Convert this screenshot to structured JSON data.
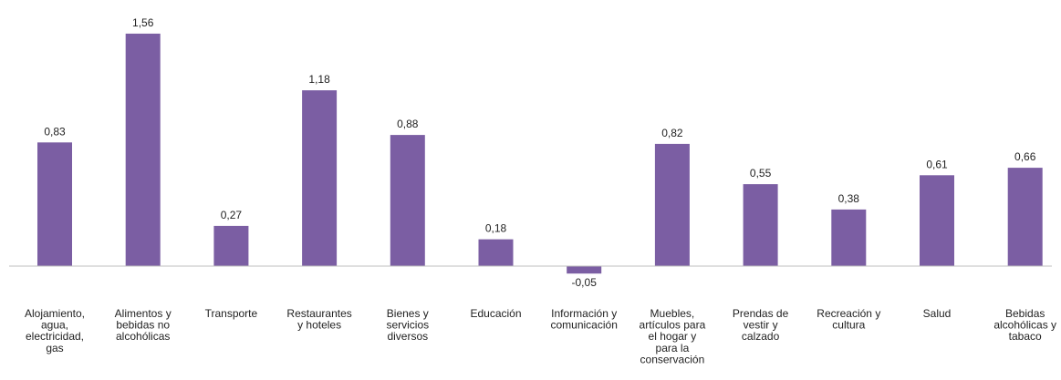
{
  "chart_data": {
    "type": "bar",
    "categories": [
      [
        "Alojamiento,",
        "agua,",
        "electricidad,",
        "gas"
      ],
      [
        "Alimentos y",
        "bebidas no",
        "alcohólicas"
      ],
      [
        "Transporte"
      ],
      [
        "Restaurantes",
        "y hoteles"
      ],
      [
        "Bienes y",
        "servicios",
        "diversos"
      ],
      [
        "Educación"
      ],
      [
        "Información y",
        "comunicación"
      ],
      [
        "Muebles,",
        "artículos para",
        "el hogar y",
        "para la",
        "conservación"
      ],
      [
        "Prendas de",
        "vestir y",
        "calzado"
      ],
      [
        "Recreación y",
        "cultura"
      ],
      [
        "Salud"
      ],
      [
        "Bebidas",
        "alcohólicas y",
        "tabaco"
      ]
    ],
    "values": [
      0.83,
      1.56,
      0.27,
      1.18,
      0.88,
      0.18,
      -0.05,
      0.82,
      0.55,
      0.38,
      0.61,
      0.66
    ],
    "value_labels": [
      "0,83",
      "1,56",
      "0,27",
      "1,18",
      "0,88",
      "0,18",
      "-0,05",
      "0,82",
      "0,55",
      "0,38",
      "0,61",
      "0,66"
    ],
    "bar_color": "#7b5ea3",
    "axis_color": "#bfbfbf",
    "grid": false,
    "legend": "none"
  }
}
